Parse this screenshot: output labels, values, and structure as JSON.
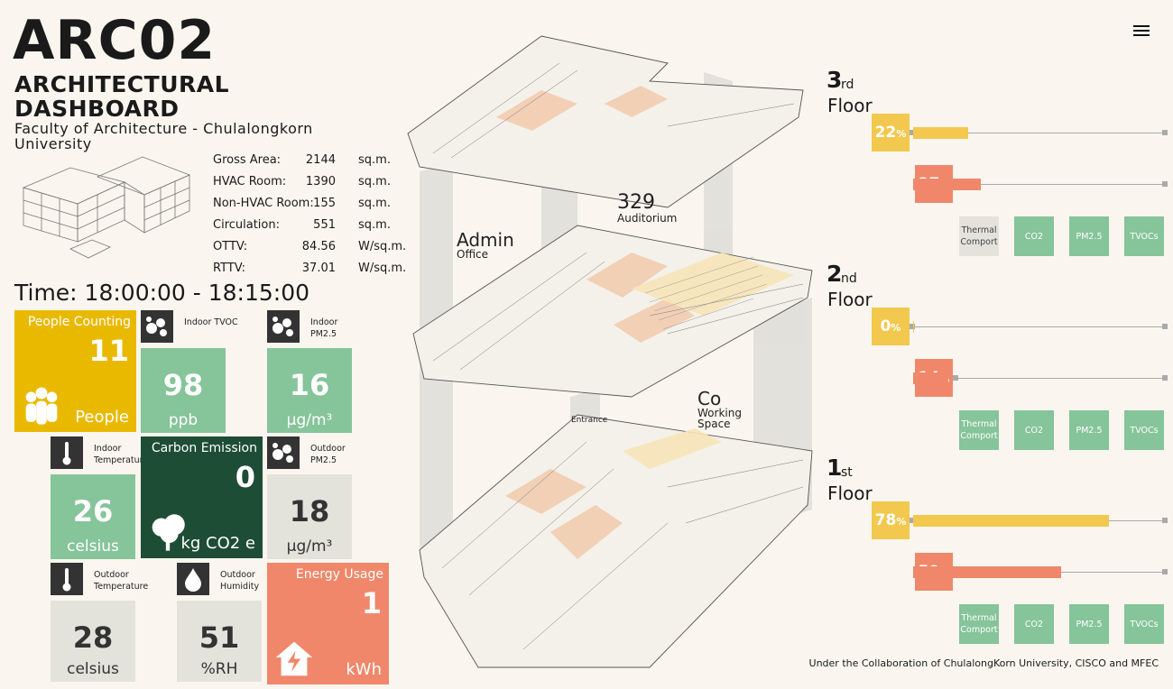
{
  "header": {
    "title": "ARC02",
    "subtitle": "ARCHITECTURAL DASHBOARD",
    "org": "Faculty of Architecture - Chulalongkorn University"
  },
  "building_stats": [
    {
      "label": "Gross Area:",
      "value": 2144,
      "unit": "sq.m."
    },
    {
      "label": "HVAC Room:",
      "value": 1390,
      "unit": "sq.m."
    },
    {
      "label": "Non-HVAC Room:",
      "value": 155,
      "unit": "sq.m."
    },
    {
      "label": "Circulation:",
      "value": 551,
      "unit": "sq.m."
    },
    {
      "label": "OTTV:",
      "value": 84.56,
      "unit": "W/sq.m."
    },
    {
      "label": "RTTV:",
      "value": 37.01,
      "unit": "W/sq.m."
    }
  ],
  "time": "Time: 18:00:00 - 18:15:00",
  "tiles": [
    {
      "label": "People Counting",
      "value": 11,
      "unit": "People"
    },
    {
      "label": "Indoor TVOC",
      "value": 98,
      "unit": "ppb"
    },
    {
      "label": "Indoor PM2.5",
      "value": 16,
      "unit": "µg/m³"
    },
    {
      "label": "Indoor Temperature",
      "value": 26,
      "unit": "celsius"
    },
    {
      "label": "Carbon Emission",
      "value": 0,
      "unit": "kg CO2 e"
    },
    {
      "label": "Outdoor PM2.5",
      "value": 18,
      "unit": "µg/m³"
    },
    {
      "label": "Outdoor Temperature",
      "value": 28,
      "unit": "celsius"
    },
    {
      "label": "Outdoor Humidity",
      "value": 51,
      "unit": "%RH"
    },
    {
      "label": "Energy Usage",
      "value": 1,
      "unit": "kWh"
    }
  ],
  "plan_labels": [
    {
      "title": "Admin",
      "sub": "Office"
    },
    {
      "title": "329",
      "sub": "Auditorium"
    },
    {
      "title": "Co",
      "sub": "Working Space"
    },
    {
      "title": "",
      "sub": "Entrance"
    }
  ],
  "percent_sign": "%",
  "floors": [
    {
      "number": "3",
      "suffix": "rd",
      "word": "Floor",
      "metrics": [
        22,
        27
      ],
      "buttons": [
        {
          "label": "Thermal Comport",
          "active": false
        },
        {
          "label": "CO2",
          "active": true
        },
        {
          "label": "PM2.5",
          "active": true
        },
        {
          "label": "TVOCs",
          "active": true
        }
      ]
    },
    {
      "number": "2",
      "suffix": "nd",
      "word": "Floor",
      "metrics": [
        0,
        14
      ],
      "buttons": [
        {
          "label": "Thermal Comport",
          "active": true
        },
        {
          "label": "CO2",
          "active": true
        },
        {
          "label": "PM2.5",
          "active": true
        },
        {
          "label": "TVOCs",
          "active": true
        }
      ]
    },
    {
      "number": "1",
      "suffix": "st",
      "word": "Floor",
      "metrics": [
        78,
        59
      ],
      "buttons": [
        {
          "label": "Thermal Comport",
          "active": true
        },
        {
          "label": "CO2",
          "active": true
        },
        {
          "label": "PM2.5",
          "active": true
        },
        {
          "label": "TVOCs",
          "active": true
        }
      ]
    }
  ],
  "metric_colors": [
    "#f2c84e",
    "#f0876a"
  ],
  "footer": "Under the Collaboration of ChulalongKorn University, CISCO and MFEC"
}
